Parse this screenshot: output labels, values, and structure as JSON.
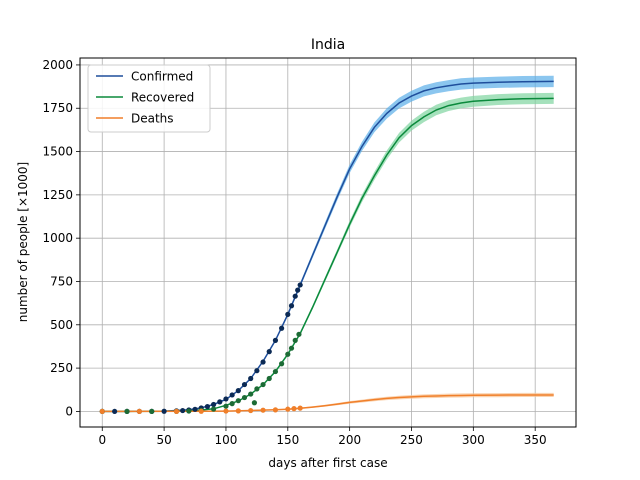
{
  "chart_data": {
    "type": "line",
    "title": "India",
    "xlabel": "days after first case",
    "ylabel": "number of people [×1000]",
    "xlim": [
      -18,
      383
    ],
    "ylim": [
      -90,
      2040
    ],
    "xticks": [
      0,
      50,
      100,
      150,
      200,
      250,
      300,
      350
    ],
    "yticks": [
      0,
      250,
      500,
      750,
      1000,
      1250,
      1500,
      1750,
      2000
    ],
    "grid": true,
    "legend_position": "top-left",
    "series": [
      {
        "name": "Confirmed",
        "line_color": "#1f4e9c",
        "band_color": "#5aaee8",
        "data_color": "#0b2a55",
        "fit": [
          [
            0,
            0
          ],
          [
            25,
            0.5
          ],
          [
            50,
            2
          ],
          [
            60,
            5
          ],
          [
            70,
            10
          ],
          [
            80,
            20
          ],
          [
            90,
            40
          ],
          [
            100,
            70
          ],
          [
            110,
            120
          ],
          [
            120,
            190
          ],
          [
            130,
            290
          ],
          [
            140,
            410
          ],
          [
            150,
            560
          ],
          [
            160,
            730
          ],
          [
            170,
            900
          ],
          [
            180,
            1070
          ],
          [
            190,
            1240
          ],
          [
            200,
            1400
          ],
          [
            210,
            1530
          ],
          [
            220,
            1640
          ],
          [
            230,
            1720
          ],
          [
            240,
            1780
          ],
          [
            250,
            1820
          ],
          [
            260,
            1850
          ],
          [
            270,
            1868
          ],
          [
            280,
            1880
          ],
          [
            290,
            1890
          ],
          [
            300,
            1895
          ],
          [
            320,
            1900
          ],
          [
            340,
            1903
          ],
          [
            365,
            1905
          ]
        ],
        "observed": [
          [
            0,
            0
          ],
          [
            10,
            0
          ],
          [
            20,
            0
          ],
          [
            30,
            0
          ],
          [
            40,
            0
          ],
          [
            50,
            1
          ],
          [
            60,
            3
          ],
          [
            65,
            5
          ],
          [
            70,
            8
          ],
          [
            75,
            12
          ],
          [
            80,
            20
          ],
          [
            85,
            28
          ],
          [
            90,
            40
          ],
          [
            95,
            55
          ],
          [
            100,
            72
          ],
          [
            105,
            95
          ],
          [
            110,
            120
          ],
          [
            115,
            155
          ],
          [
            120,
            190
          ],
          [
            125,
            235
          ],
          [
            130,
            285
          ],
          [
            135,
            345
          ],
          [
            140,
            410
          ],
          [
            145,
            480
          ],
          [
            150,
            560
          ],
          [
            153,
            610
          ],
          [
            156,
            665
          ],
          [
            158,
            700
          ],
          [
            160,
            730
          ]
        ]
      },
      {
        "name": "Recovered",
        "line_color": "#0b8a3c",
        "band_color": "#7fd4a0",
        "data_color": "#1c6b35",
        "fit": [
          [
            0,
            0
          ],
          [
            50,
            0.5
          ],
          [
            70,
            3
          ],
          [
            80,
            8
          ],
          [
            90,
            15
          ],
          [
            100,
            35
          ],
          [
            110,
            60
          ],
          [
            120,
            100
          ],
          [
            130,
            155
          ],
          [
            140,
            230
          ],
          [
            150,
            330
          ],
          [
            160,
            450
          ],
          [
            170,
            600
          ],
          [
            180,
            760
          ],
          [
            190,
            920
          ],
          [
            200,
            1080
          ],
          [
            210,
            1230
          ],
          [
            220,
            1360
          ],
          [
            230,
            1480
          ],
          [
            240,
            1580
          ],
          [
            250,
            1650
          ],
          [
            260,
            1700
          ],
          [
            270,
            1740
          ],
          [
            280,
            1765
          ],
          [
            290,
            1780
          ],
          [
            300,
            1790
          ],
          [
            320,
            1800
          ],
          [
            340,
            1805
          ],
          [
            365,
            1807
          ]
        ],
        "observed": [
          [
            0,
            0
          ],
          [
            20,
            0
          ],
          [
            40,
            0
          ],
          [
            60,
            0
          ],
          [
            70,
            2
          ],
          [
            80,
            6
          ],
          [
            90,
            14
          ],
          [
            100,
            30
          ],
          [
            105,
            45
          ],
          [
            110,
            62
          ],
          [
            115,
            80
          ],
          [
            120,
            100
          ],
          [
            123,
            50
          ],
          [
            125,
            130
          ],
          [
            130,
            155
          ],
          [
            135,
            190
          ],
          [
            140,
            230
          ],
          [
            145,
            275
          ],
          [
            150,
            330
          ],
          [
            153,
            365
          ],
          [
            156,
            410
          ],
          [
            159,
            445
          ]
        ]
      },
      {
        "name": "Deaths",
        "line_color": "#f07f2a",
        "band_color": "#f8c08f",
        "data_color": "#f07f2a",
        "fit": [
          [
            0,
            0
          ],
          [
            80,
            1
          ],
          [
            100,
            2
          ],
          [
            120,
            5
          ],
          [
            140,
            9
          ],
          [
            150,
            13
          ],
          [
            160,
            18
          ],
          [
            170,
            25
          ],
          [
            180,
            33
          ],
          [
            190,
            42
          ],
          [
            200,
            52
          ],
          [
            210,
            60
          ],
          [
            220,
            68
          ],
          [
            230,
            75
          ],
          [
            240,
            80
          ],
          [
            250,
            84
          ],
          [
            260,
            87
          ],
          [
            270,
            89
          ],
          [
            280,
            91
          ],
          [
            290,
            92
          ],
          [
            300,
            93
          ],
          [
            320,
            94
          ],
          [
            340,
            95
          ],
          [
            365,
            95
          ]
        ],
        "observed": [
          [
            0,
            0
          ],
          [
            30,
            0
          ],
          [
            60,
            0
          ],
          [
            80,
            1
          ],
          [
            100,
            2
          ],
          [
            110,
            3
          ],
          [
            120,
            5
          ],
          [
            130,
            7
          ],
          [
            140,
            9
          ],
          [
            150,
            13
          ],
          [
            155,
            16
          ],
          [
            160,
            19
          ]
        ]
      }
    ]
  }
}
